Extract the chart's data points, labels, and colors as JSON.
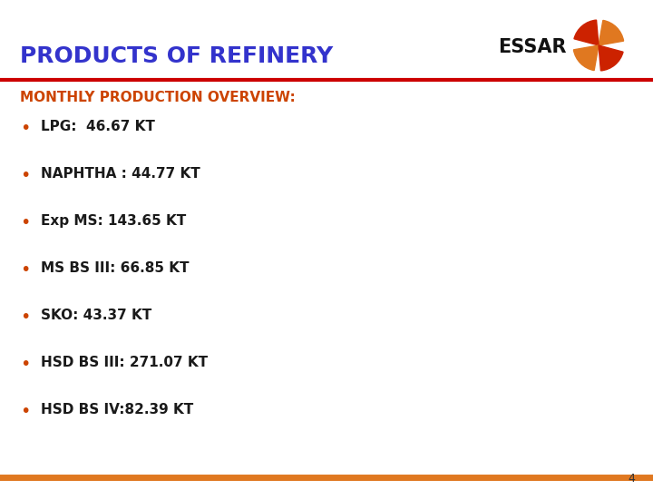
{
  "title": "PRODUCTS OF REFINERY",
  "title_color": "#3333cc",
  "title_fontsize": 18,
  "subtitle": "MONTHLY PRODUCTION OVERVIEW:",
  "subtitle_color": "#cc4400",
  "subtitle_fontsize": 11,
  "bullet_items": [
    "LPG:  46.67 KT",
    "NAPHTHA : 44.77 KT",
    "Exp MS: 143.65 KT",
    "MS BS III: 66.85 KT",
    "SKO: 43.37 KT",
    "HSD BS III: 271.07 KT",
    "HSD BS IV:82.39 KT"
  ],
  "bullet_text_color": "#1a1a1a",
  "bullet_fontsize": 11,
  "bullet_dot_color": "#cc4400",
  "red_line_color": "#cc0000",
  "orange_line_color": "#e07820",
  "background_color": "#ffffff",
  "page_number": "4",
  "essar_text_color": "#111111",
  "essar_star_orange": "#e07820",
  "essar_star_red": "#cc2200"
}
